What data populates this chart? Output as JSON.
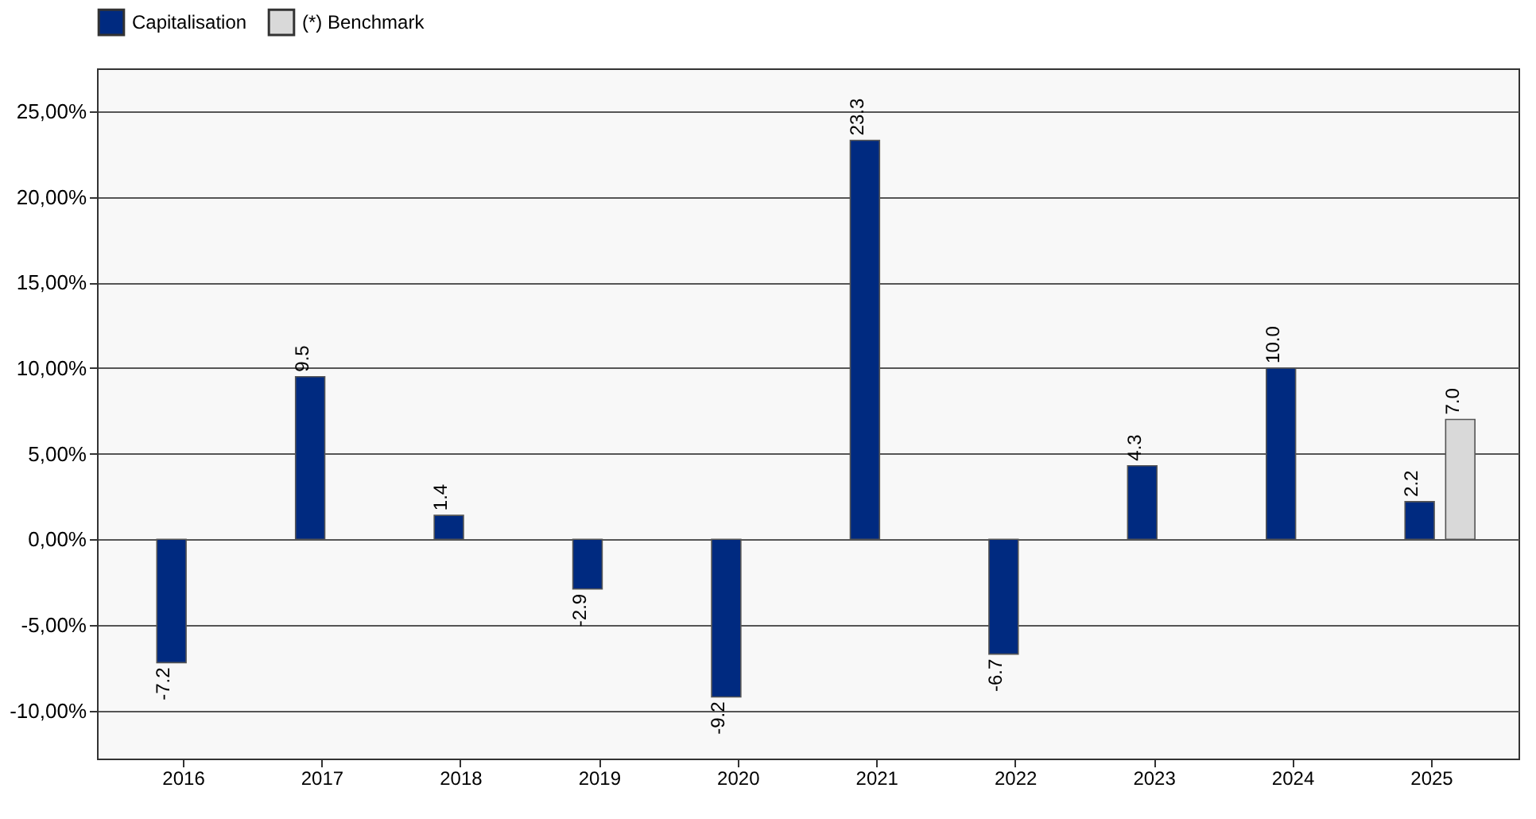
{
  "chart_data": {
    "type": "bar",
    "categories": [
      "2016",
      "2017",
      "2018",
      "2019",
      "2020",
      "2021",
      "2022",
      "2023",
      "2024",
      "2025"
    ],
    "series": [
      {
        "name": "Capitalisation",
        "color": "#002a80",
        "values": [
          -7.2,
          9.5,
          1.4,
          -2.9,
          -9.2,
          23.3,
          -6.7,
          4.3,
          10.0,
          2.2
        ],
        "value_labels": [
          "-7.2",
          "9.5",
          "1.4",
          "-2.9",
          "-9.2",
          "23.3",
          "-6.7",
          "4.3",
          "10.0",
          "2.2"
        ]
      },
      {
        "name": "(*) Benchmark",
        "color": "#d9d9d9",
        "values": [
          null,
          null,
          null,
          null,
          null,
          null,
          null,
          null,
          null,
          7.0
        ],
        "value_labels": [
          null,
          null,
          null,
          null,
          null,
          null,
          null,
          null,
          null,
          "7.0"
        ]
      }
    ],
    "ylim": [
      -12.8,
      27.5
    ],
    "yticks": [
      {
        "value": -10,
        "label": "-10,00%"
      },
      {
        "value": -5,
        "label": "-5,00%"
      },
      {
        "value": 0,
        "label": "0,00%"
      },
      {
        "value": 5,
        "label": "5,00%"
      },
      {
        "value": 10,
        "label": "10,00%"
      },
      {
        "value": 15,
        "label": "15,00%"
      },
      {
        "value": 20,
        "label": "20,00%"
      },
      {
        "value": 25,
        "label": "25,00%"
      }
    ],
    "grid": "y",
    "legend": "top"
  }
}
